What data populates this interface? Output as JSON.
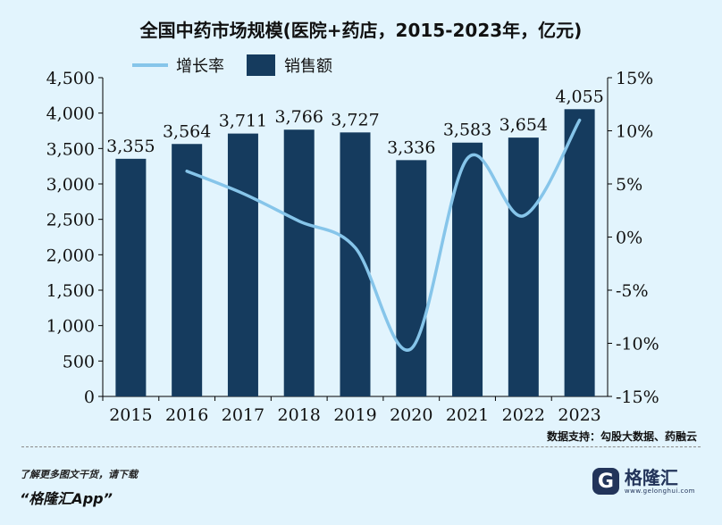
{
  "chart_data": {
    "type": "bar",
    "title": "全国中药市场规模(医院+药店，2015-2023年，亿元)",
    "categories": [
      "2015",
      "2016",
      "2017",
      "2018",
      "2019",
      "2020",
      "2021",
      "2022",
      "2023"
    ],
    "series": [
      {
        "name": "销售额",
        "type": "bar",
        "axis": "left",
        "color": "#153b5e",
        "values": [
          3355,
          3564,
          3711,
          3766,
          3727,
          3336,
          3583,
          3654,
          4055
        ],
        "labels": [
          "3,355",
          "3,564",
          "3,711",
          "3,766",
          "3,727",
          "3,336",
          "3,583",
          "3,654",
          "4,055"
        ]
      },
      {
        "name": "增长率",
        "type": "line",
        "axis": "right",
        "color": "#86c5ea",
        "values": [
          null,
          6.2,
          4.1,
          1.5,
          -1.0,
          -10.5,
          7.4,
          2.0,
          11.0
        ]
      }
    ],
    "ylim": [
      0,
      4500
    ],
    "y_ticks": [
      "4,500",
      "4,000",
      "3,500",
      "3,000",
      "2,500",
      "2,000",
      "1,500",
      "1,000",
      "500",
      "0"
    ],
    "y2lim": [
      -15,
      15
    ],
    "y2_ticks": [
      "15%",
      "10%",
      "5%",
      "0%",
      "-5%",
      "-10%",
      "-15%"
    ],
    "legend": "top-left",
    "grid": false
  },
  "source": "数据支持：勾股大数据、药融云",
  "footer": {
    "promo": "了解更多图文干货，请下载",
    "app": "“格隆汇App”"
  },
  "logo": {
    "mark": "G",
    "name": "格隆汇",
    "url": "www.gelonghui.com"
  },
  "icons": [
    "logo-icon"
  ]
}
